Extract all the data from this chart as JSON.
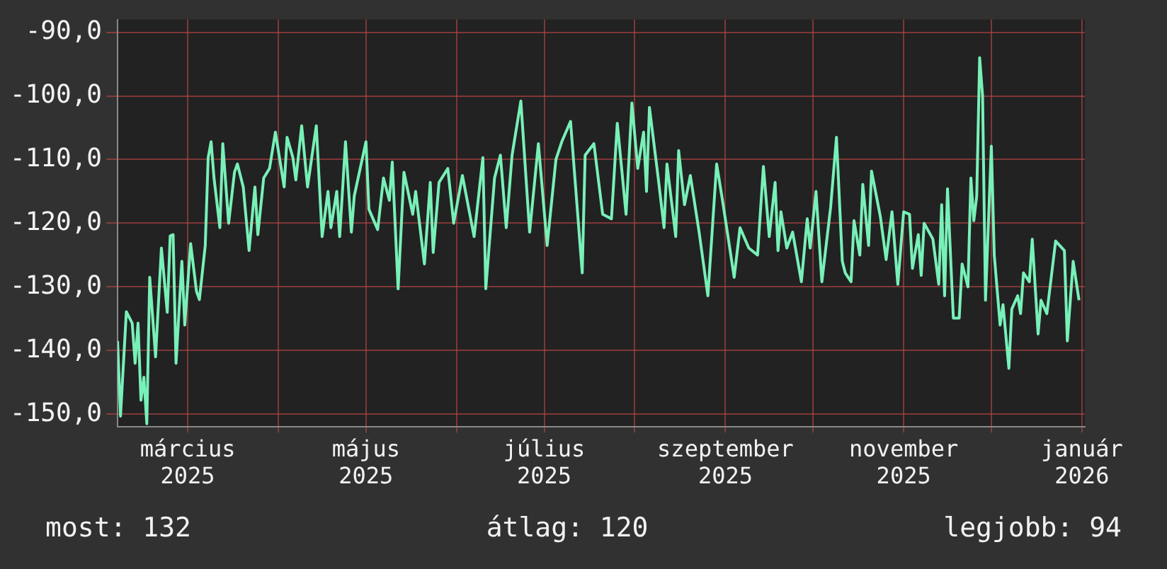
{
  "chart_data": {
    "type": "line",
    "x": [
      "2025-02-05",
      "2025-02-06",
      "2025-02-08",
      "2025-02-10",
      "2025-02-11",
      "2025-02-12",
      "2025-02-13",
      "2025-02-14",
      "2025-02-15",
      "2025-02-16",
      "2025-02-18",
      "2025-02-20",
      "2025-02-22",
      "2025-02-23",
      "2025-02-24",
      "2025-02-25",
      "2025-02-27",
      "2025-02-28",
      "2025-03-02",
      "2025-03-04",
      "2025-03-05",
      "2025-03-07",
      "2025-03-08",
      "2025-03-09",
      "2025-03-10",
      "2025-03-12",
      "2025-03-13",
      "2025-03-15",
      "2025-03-17",
      "2025-03-18",
      "2025-03-20",
      "2025-03-22",
      "2025-03-24",
      "2025-03-25",
      "2025-03-27",
      "2025-03-29",
      "2025-03-31",
      "2025-04-03",
      "2025-04-04",
      "2025-04-06",
      "2025-04-07",
      "2025-04-09",
      "2025-04-11",
      "2025-04-14",
      "2025-04-16",
      "2025-04-18",
      "2025-04-19",
      "2025-04-21",
      "2025-04-22",
      "2025-04-24",
      "2025-04-26",
      "2025-04-27",
      "2025-05-01",
      "2025-05-02",
      "2025-05-05",
      "2025-05-07",
      "2025-05-09",
      "2025-05-10",
      "2025-05-12",
      "2025-05-14",
      "2025-05-17",
      "2025-05-18",
      "2025-05-21",
      "2025-05-23",
      "2025-05-24",
      "2025-05-26",
      "2025-05-29",
      "2025-05-31",
      "2025-06-03",
      "2025-06-07",
      "2025-06-10",
      "2025-06-11",
      "2025-06-14",
      "2025-06-16",
      "2025-06-18",
      "2025-06-20",
      "2025-06-23",
      "2025-06-26",
      "2025-06-29",
      "2025-07-02",
      "2025-07-05",
      "2025-07-07",
      "2025-07-10",
      "2025-07-14",
      "2025-07-15",
      "2025-07-18",
      "2025-07-21",
      "2025-07-24",
      "2025-07-26",
      "2025-07-29",
      "2025-07-31",
      "2025-08-02",
      "2025-08-04",
      "2025-08-05",
      "2025-08-06",
      "2025-08-09",
      "2025-08-11",
      "2025-08-12",
      "2025-08-15",
      "2025-08-16",
      "2025-08-18",
      "2025-08-20",
      "2025-08-23",
      "2025-08-26",
      "2025-08-29",
      "2025-08-31",
      "2025-09-04",
      "2025-09-06",
      "2025-09-09",
      "2025-09-12",
      "2025-09-14",
      "2025-09-16",
      "2025-09-18",
      "2025-09-19",
      "2025-09-20",
      "2025-09-22",
      "2025-09-24",
      "2025-09-27",
      "2025-09-29",
      "2025-09-30",
      "2025-10-02",
      "2025-10-04",
      "2025-10-07",
      "2025-10-09",
      "2025-10-11",
      "2025-10-12",
      "2025-10-14",
      "2025-10-15",
      "2025-10-17",
      "2025-10-18",
      "2025-10-20",
      "2025-10-21",
      "2025-10-24",
      "2025-10-26",
      "2025-10-28",
      "2025-10-30",
      "2025-11-01",
      "2025-11-03",
      "2025-11-04",
      "2025-11-06",
      "2025-11-07",
      "2025-11-08",
      "2025-11-11",
      "2025-11-13",
      "2025-11-14",
      "2025-11-15",
      "2025-11-16",
      "2025-11-18",
      "2025-11-20",
      "2025-11-21",
      "2025-11-23",
      "2025-11-24",
      "2025-11-25",
      "2025-11-26",
      "2025-11-27",
      "2025-11-28",
      "2025-11-29",
      "2025-12-01",
      "2025-12-02",
      "2025-12-04",
      "2025-12-05",
      "2025-12-07",
      "2025-12-08",
      "2025-12-10",
      "2025-12-11",
      "2025-12-12",
      "2025-12-14",
      "2025-12-15",
      "2025-12-17",
      "2025-12-18",
      "2025-12-20",
      "2025-12-23",
      "2025-12-26",
      "2025-12-27",
      "2025-12-29",
      "2025-12-31"
    ],
    "series": [
      {
        "color": "#78f0b8",
        "values": [
          -138.5,
          -150.3,
          -133.9,
          -135.7,
          -142,
          -135.7,
          -147.8,
          -144.2,
          -151.5,
          -128.5,
          -141,
          -123.9,
          -134,
          -122,
          -121.8,
          -142,
          -126,
          -136,
          -123.2,
          -130.7,
          -132,
          -123.5,
          -109.7,
          -107.2,
          -112.9,
          -120.7,
          -107.5,
          -120,
          -112,
          -110.7,
          -114.3,
          -124.3,
          -114.3,
          -121.8,
          -112.9,
          -111.4,
          -105.7,
          -114.3,
          -106.5,
          -109.7,
          -113.2,
          -104.7,
          -114.3,
          -104.7,
          -122.1,
          -115,
          -120.7,
          -115,
          -122.1,
          -107.2,
          -121.4,
          -115.7,
          -107.2,
          -117.8,
          -121,
          -112.9,
          -116.4,
          -110.4,
          -130.3,
          -112,
          -118.6,
          -115,
          -126.4,
          -113.6,
          -124.6,
          -113.6,
          -111.4,
          -120,
          -112.5,
          -122.1,
          -109.7,
          -130.3,
          -112.9,
          -109.3,
          -120.7,
          -109.3,
          -100.8,
          -121.4,
          -107.5,
          -123.5,
          -110,
          -107.2,
          -104,
          -127.8,
          -109.3,
          -107.5,
          -118.6,
          -119.3,
          -104.3,
          -118.6,
          -101.1,
          -111.4,
          -105.7,
          -115,
          -101.8,
          -112.9,
          -120.7,
          -110.7,
          -122.1,
          -108.6,
          -117.1,
          -112.5,
          -121.4,
          -131.4,
          -110.7,
          -116.4,
          -128.5,
          -120.7,
          -123.9,
          -125,
          -111.1,
          -122.1,
          -113.6,
          -124.3,
          -118.2,
          -123.9,
          -121.4,
          -129.2,
          -119.3,
          -123.9,
          -115,
          -129.2,
          -117.5,
          -106.5,
          -126,
          -127.8,
          -129.2,
          -119.6,
          -125,
          -113.9,
          -123.5,
          -111.8,
          -118.9,
          -125.7,
          -118.2,
          -129.6,
          -118.2,
          -118.6,
          -127.1,
          -121.8,
          -128.2,
          -120,
          -122.5,
          -129.6,
          -117.1,
          -131.4,
          -114.6,
          -134.9,
          -134.9,
          -126.4,
          -130,
          -112.9,
          -119.6,
          -115.7,
          -94,
          -100,
          -132.1,
          -107.9,
          -125,
          -136,
          -132.8,
          -142.8,
          -133.5,
          -131.4,
          -134.2,
          -127.8,
          -129.2,
          -122.5,
          -137.4,
          -132.1,
          -134.2,
          -122.8,
          -124.3,
          -138.5,
          -126,
          -132.1
        ]
      }
    ],
    "xlim": [
      "2025-02-05",
      "2026-01-02"
    ],
    "xticks": [
      {
        "value": "2025-03-01",
        "label": "március 2025"
      },
      {
        "value": "2025-04-01",
        "label": null
      },
      {
        "value": "2025-05-01",
        "label": "május 2025"
      },
      {
        "value": "2025-06-01",
        "label": null
      },
      {
        "value": "2025-07-01",
        "label": "július 2025"
      },
      {
        "value": "2025-08-01",
        "label": null
      },
      {
        "value": "2025-09-01",
        "label": "szeptember 2025"
      },
      {
        "value": "2025-10-01",
        "label": null
      },
      {
        "value": "2025-11-01",
        "label": "november 2025"
      },
      {
        "value": "2025-12-01",
        "label": null
      },
      {
        "value": "2026-01-01",
        "label": "január 2026"
      }
    ],
    "ylim": [
      -152,
      -88
    ],
    "yticks": [
      {
        "value": -150,
        "label": "-150,0"
      },
      {
        "value": -140,
        "label": "-140,0"
      },
      {
        "value": -130,
        "label": "-130,0"
      },
      {
        "value": -120,
        "label": "-120,0"
      },
      {
        "value": -110,
        "label": "-110,0"
      },
      {
        "value": -100,
        "label": "-100,0"
      },
      {
        "value": -90,
        "label": "-90,0"
      }
    ],
    "grid": true,
    "annotations": [
      "most: 132",
      "átlag: 120",
      "legjobb: 94"
    ]
  }
}
